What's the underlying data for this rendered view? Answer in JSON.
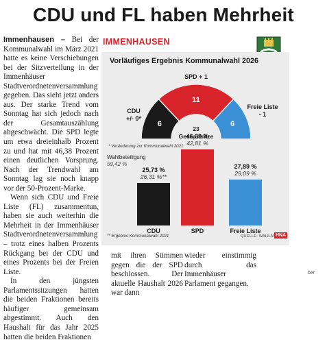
{
  "headline": "CDU und FL haben Mehrheit",
  "article": {
    "dateline": "Immenhausen –",
    "col1_p1": " Bei der Kommunalwahl im März 2021 hatte es keine Verschiebungen bei der Sitzverteilung in der Immenhäuser Stadtverordnetenversammlung gegeben. Das sieht jetzt anders aus. Der starke Trend vom Sonntag hat sich jedoch nach der Gesamtauszählung abgeschwächt. Die SPD legte um etwa dreieinhalb Prozent zu und hat mit 46,38 Prozent einen deutlichen Vorsprung. Nach der Trendwahl am Sonntag lag sie noch knapp vor der 50-Prozent-Marke.",
    "col1_p2": "Wenn sich CDU und Freie Liste (FL) zusammentun, haben sie auch weiterhin die Mehrheit in der Immenhäuser Stadtverordnetenversammlung – trotz eines halben Prozents Rückgang bei der CDU und eines Prozents bei der Freien Liste.",
    "col1_p3": "In den jüngsten Parlamentssitzungen hatten die beiden Fraktionen bereits häufiger gemeinsam abgestimmt. Auch den Haushalt für das Jahr 2025 hatten die beiden Fraktionen",
    "col2": "mit ihren Stimmen gegen die der SPD beschlossen. Der aktuelle Haushalt 2026 war dann",
    "col3": "wieder einstimmig durch das Immenhäuser Parlament gegangen.",
    "col4": "ber"
  },
  "graphic": {
    "town": "IMMENHAUSEN",
    "title": "Vorläufiges Ergebnis Kommunalwahl 2026",
    "seats_total": "23",
    "seats_label": "Gesamtsitze",
    "footnote_change": "* Veränderung zur Kommunalwahl 2021",
    "turnout_label": "Wahlbeteiligung",
    "turnout_value": "59,42 %",
    "source_note": "** Ergebnis Kommunalwahl 2021",
    "source": "QUELLE: WAHLAMT",
    "brand": "HNA",
    "parties": [
      {
        "name": "CDU",
        "seats": "6",
        "change_label": "CDU",
        "change": "+/- 0*",
        "pct": "25,73 %",
        "prev": "26,31 %**",
        "value": 25.73,
        "color": "#1a1a1a"
      },
      {
        "name": "SPD",
        "seats": "11",
        "change_label": "SPD + 1",
        "change": "",
        "pct": "46,38 %",
        "prev": "42,81 %",
        "value": 46.38,
        "color": "#d8232a"
      },
      {
        "name": "Freie Liste",
        "seats": "6",
        "change_label": "Freie Liste",
        "change": "- 1",
        "pct": "27,89 %",
        "prev": "29,09 %",
        "value": 27.89,
        "color": "#3b8fd4"
      }
    ]
  }
}
